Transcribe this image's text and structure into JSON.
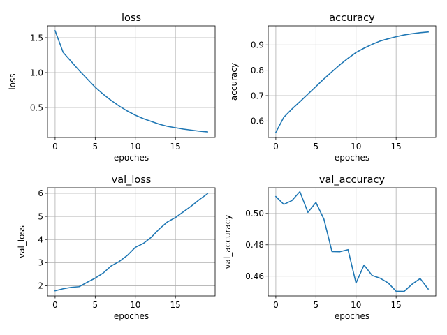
{
  "figure_bg": "#ffffff",
  "line_color": "#1f77b4",
  "chart_data": [
    {
      "type": "line",
      "title": "loss",
      "xlabel": "epoches",
      "ylabel": "loss",
      "grid": true,
      "xlim": [
        -0.95,
        19.95
      ],
      "ylim": [
        0.07,
        1.67
      ],
      "xticks": [
        0,
        5,
        10,
        15
      ],
      "yticks": [
        0.5,
        1.0,
        1.5
      ],
      "ytick_labels": [
        "0.5",
        "1.0",
        "1.5"
      ],
      "x": [
        0,
        1,
        2,
        3,
        4,
        5,
        6,
        7,
        8,
        9,
        10,
        11,
        12,
        13,
        14,
        15,
        16,
        17,
        18,
        19
      ],
      "values": [
        1.6,
        1.29,
        1.16,
        1.03,
        0.91,
        0.79,
        0.69,
        0.6,
        0.52,
        0.45,
        0.39,
        0.34,
        0.3,
        0.26,
        0.23,
        0.21,
        0.19,
        0.175,
        0.16,
        0.15
      ]
    },
    {
      "type": "line",
      "title": "accuracy",
      "xlabel": "epoches",
      "ylabel": "accuracy",
      "grid": true,
      "xlim": [
        -0.95,
        19.95
      ],
      "ylim": [
        0.535,
        0.975
      ],
      "xticks": [
        0,
        5,
        10,
        15
      ],
      "yticks": [
        0.6,
        0.7,
        0.8,
        0.9
      ],
      "ytick_labels": [
        "0.6",
        "0.7",
        "0.8",
        "0.9"
      ],
      "x": [
        0,
        1,
        2,
        3,
        4,
        5,
        6,
        7,
        8,
        9,
        10,
        11,
        12,
        13,
        14,
        15,
        16,
        17,
        18,
        19
      ],
      "values": [
        0.555,
        0.615,
        0.647,
        0.676,
        0.706,
        0.736,
        0.766,
        0.794,
        0.822,
        0.847,
        0.87,
        0.887,
        0.902,
        0.915,
        0.924,
        0.932,
        0.939,
        0.944,
        0.948,
        0.951
      ]
    },
    {
      "type": "line",
      "title": "val_loss",
      "xlabel": "epoches",
      "ylabel": "val_loss",
      "grid": true,
      "xlim": [
        -0.95,
        19.95
      ],
      "ylim": [
        1.56,
        6.24
      ],
      "xticks": [
        0,
        5,
        10,
        15
      ],
      "yticks": [
        2,
        3,
        4,
        5,
        6
      ],
      "ytick_labels": [
        "2",
        "3",
        "4",
        "5",
        "6"
      ],
      "x": [
        0,
        1,
        2,
        3,
        4,
        5,
        6,
        7,
        8,
        9,
        10,
        11,
        12,
        13,
        14,
        15,
        16,
        17,
        18,
        19
      ],
      "values": [
        1.78,
        1.87,
        1.93,
        1.96,
        2.15,
        2.33,
        2.55,
        2.86,
        3.05,
        3.31,
        3.66,
        3.83,
        4.1,
        4.46,
        4.76,
        4.95,
        5.2,
        5.45,
        5.73,
        5.98
      ]
    },
    {
      "type": "line",
      "title": "val_accuracy",
      "xlabel": "epoches",
      "ylabel": "val_accuracy",
      "grid": true,
      "xlim": [
        -0.95,
        19.95
      ],
      "ylim": [
        0.4474,
        0.5164
      ],
      "xticks": [
        0,
        5,
        10,
        15
      ],
      "yticks": [
        0.46,
        0.48,
        0.5
      ],
      "ytick_labels": [
        "0.46",
        "0.48",
        "0.50"
      ],
      "x": [
        0,
        1,
        2,
        3,
        4,
        5,
        6,
        7,
        8,
        9,
        10,
        11,
        12,
        13,
        14,
        15,
        16,
        17,
        18,
        19
      ],
      "values": [
        0.5108,
        0.5058,
        0.5082,
        0.5139,
        0.5007,
        0.507,
        0.4963,
        0.4757,
        0.4756,
        0.4769,
        0.4556,
        0.4671,
        0.4605,
        0.4587,
        0.4557,
        0.4504,
        0.4503,
        0.4549,
        0.4585,
        0.4518
      ]
    }
  ]
}
